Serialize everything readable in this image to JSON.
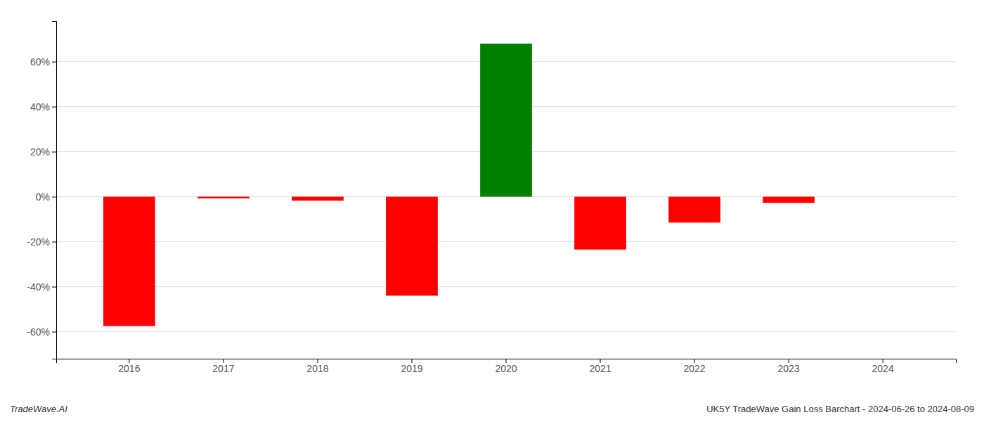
{
  "chart_data": {
    "type": "bar",
    "categories": [
      "2016",
      "2017",
      "2018",
      "2019",
      "2020",
      "2021",
      "2022",
      "2023",
      "2024"
    ],
    "values": [
      -0.575,
      -0.008,
      -0.018,
      -0.44,
      0.68,
      -0.235,
      -0.115,
      -0.028,
      0.0
    ],
    "colors": [
      "#ff0000",
      "#ff0000",
      "#ff0000",
      "#ff0000",
      "#008000",
      "#ff0000",
      "#ff0000",
      "#ff0000",
      "#ff0000"
    ],
    "ylim": [
      -0.72,
      0.78
    ],
    "yticks": [
      {
        "value": -0.6,
        "label": "-60%"
      },
      {
        "value": -0.4,
        "label": "-40%"
      },
      {
        "value": -0.2,
        "label": "-20%"
      },
      {
        "value": 0.0,
        "label": "0%"
      },
      {
        "value": 0.2,
        "label": "20%"
      },
      {
        "value": 0.4,
        "label": "40%"
      },
      {
        "value": 0.6,
        "label": "60%"
      }
    ],
    "grid": true,
    "annotations": [
      "TradeWave.AI",
      "UK5Y TradeWave Gain Loss Barchart - 2024-06-26 to 2024-08-09"
    ]
  }
}
